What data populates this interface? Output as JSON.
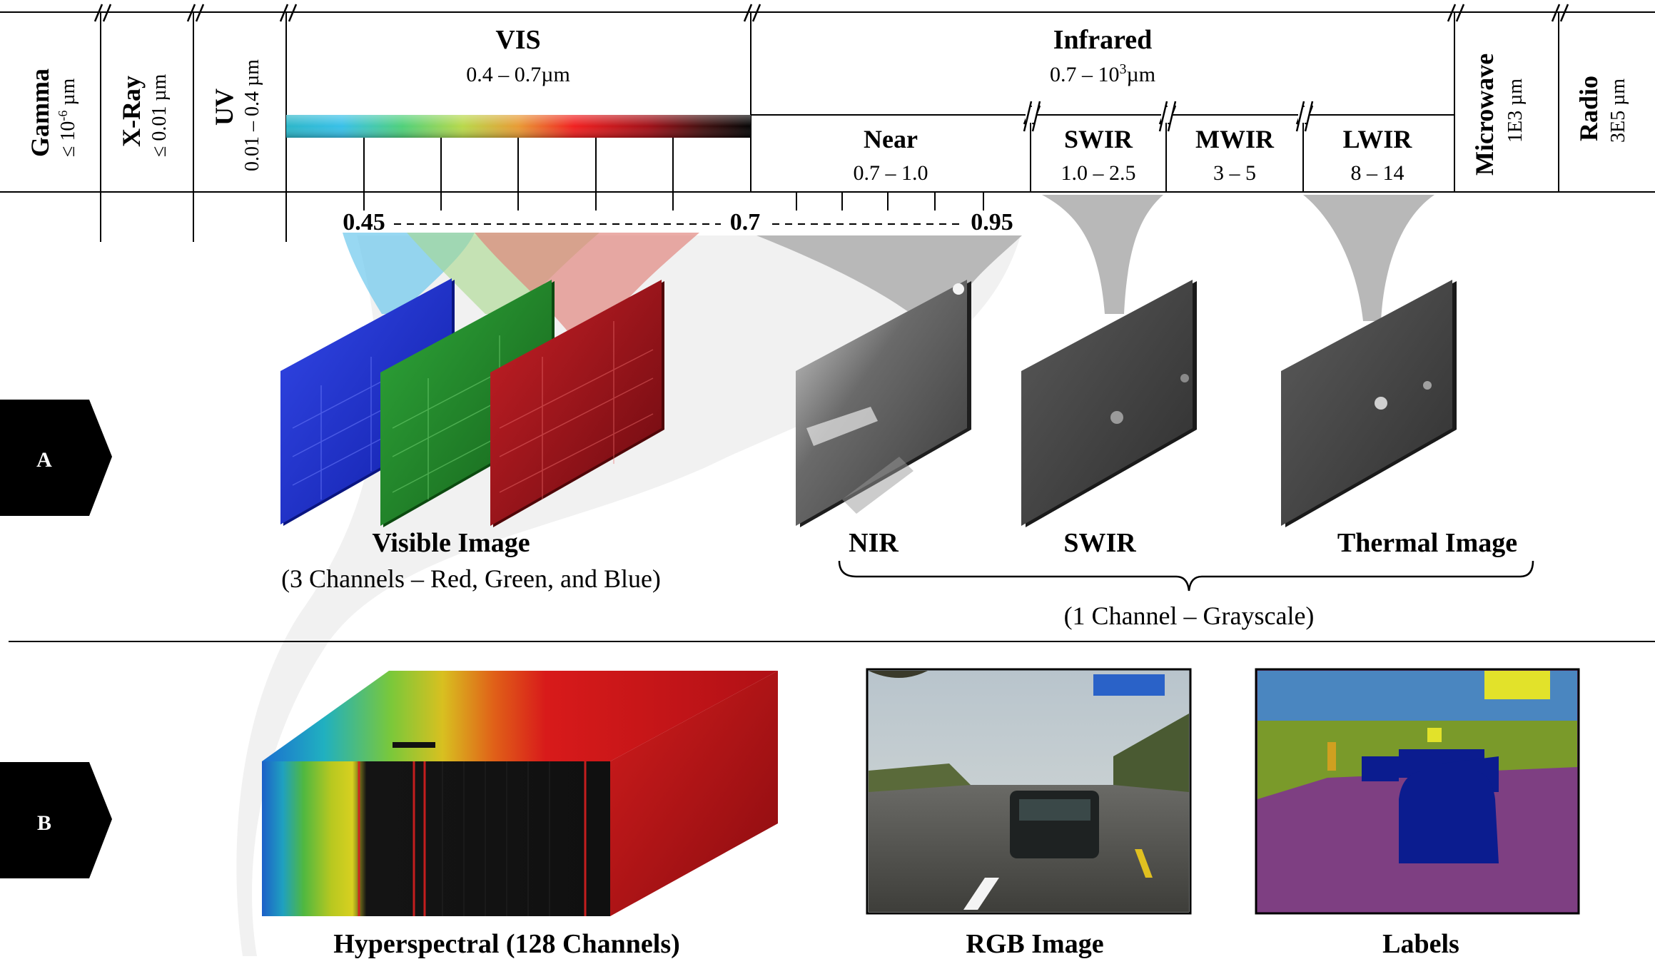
{
  "spectrum": {
    "bands": {
      "gamma": {
        "name": "Gamma",
        "range": "≤ 10",
        "range_sup": "-6",
        "range_unit": " µm"
      },
      "xray": {
        "name": "X-Ray",
        "range": "≤ 0.01 µm"
      },
      "uv": {
        "name": "UV",
        "range": "0.01 – 0.4 µm"
      },
      "vis": {
        "name": "VIS",
        "range": "0.4 – 0.7µm"
      },
      "infrared": {
        "name": "Infrared",
        "range_pre": "0.7 – 10",
        "range_sup": "3",
        "range_post": "µm"
      },
      "near": {
        "name": "Near",
        "range": "0.7 – 1.0"
      },
      "swir": {
        "name": "SWIR",
        "range": "1.0 – 2.5"
      },
      "mwir": {
        "name": "MWIR",
        "range": "3 – 5"
      },
      "lwir": {
        "name": "LWIR",
        "range": "8 – 14"
      },
      "microwave": {
        "name": "Microwave",
        "range": "1E3 µm"
      },
      "radio": {
        "name": "Radio",
        "range": "3E5 µm"
      }
    },
    "markers": {
      "m045": "0.45",
      "m07": "0.7",
      "m095": "0.95"
    }
  },
  "row_a": {
    "tag": "A",
    "visible_title": "Visible Image",
    "visible_sub": "(3 Channels – Red, Green, and Blue)",
    "nir_title": "NIR",
    "swir_title": "SWIR",
    "thermal_title": "Thermal Image",
    "grayscale_sub": "(1 Channel – Grayscale)"
  },
  "row_b": {
    "tag": "B",
    "hyper_title": "Hyperspectral (128 Channels)",
    "rgb_title": "RGB Image",
    "labels_title": "Labels"
  },
  "colors": {
    "blue_plane": "#1a2fd6",
    "green_plane": "#1f8a22",
    "red_plane": "#b0141c",
    "label_sky": "#4a86c0",
    "label_road": "#7e3f82",
    "label_car": "#0b1c8f",
    "label_veg": "#7a9a2a",
    "label_sign": "#e2e22a"
  }
}
